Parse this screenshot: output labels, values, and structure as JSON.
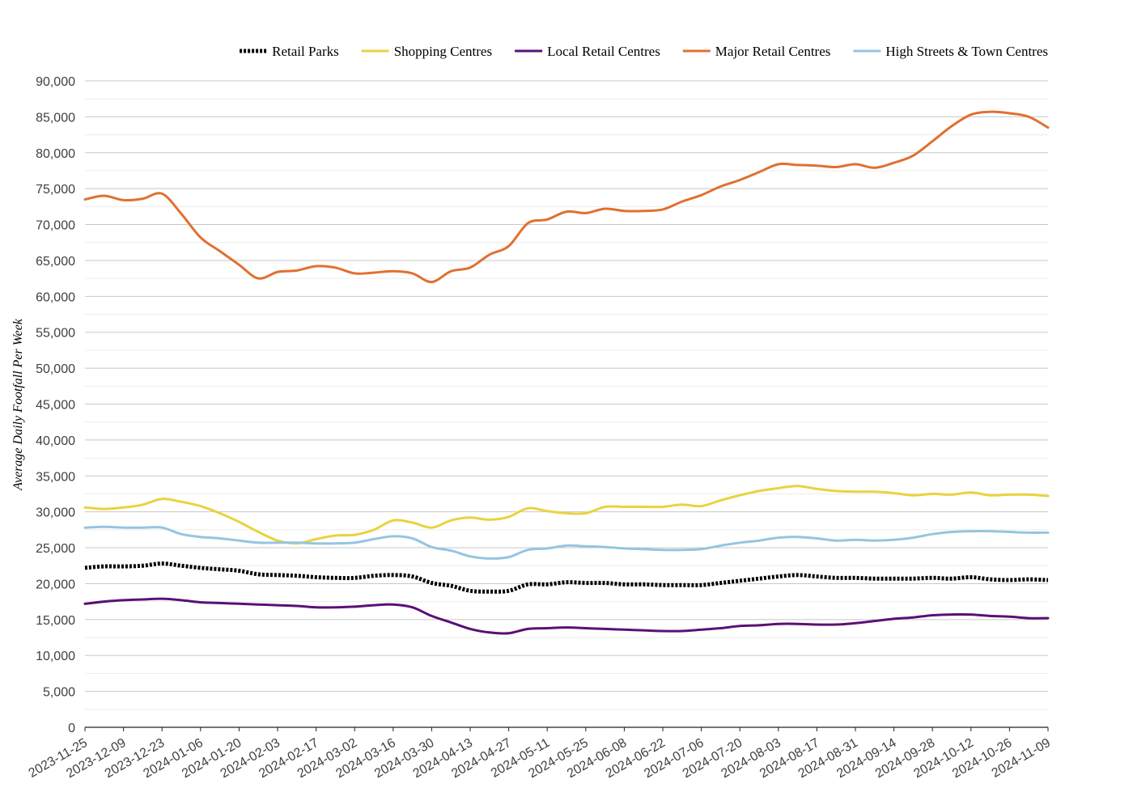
{
  "chart_data": {
    "type": "line",
    "title": "",
    "xlabel": "",
    "ylabel": "Average Daily Footfall Per Week",
    "ylim": [
      0,
      90000
    ],
    "y_ticks": [
      0,
      5000,
      10000,
      15000,
      20000,
      25000,
      30000,
      35000,
      40000,
      45000,
      50000,
      55000,
      60000,
      65000,
      70000,
      75000,
      80000,
      85000,
      90000
    ],
    "y_tick_labels": [
      "0",
      "5,000",
      "10,000",
      "15,000",
      "20,000",
      "25,000",
      "30,000",
      "35,000",
      "40,000",
      "45,000",
      "50,000",
      "55,000",
      "60,000",
      "65,000",
      "70,000",
      "75,000",
      "80,000",
      "85,000",
      "90,000"
    ],
    "x_tick_labels": [
      "2023-11-25",
      "2023-12-09",
      "2023-12-23",
      "2024-01-06",
      "2024-01-20",
      "2024-02-03",
      "2024-02-17",
      "2024-03-02",
      "2024-03-16",
      "2024-03-30",
      "2024-04-13",
      "2024-04-27",
      "2024-05-11",
      "2024-05-25",
      "2024-06-08",
      "2024-06-22",
      "2024-07-06",
      "2024-07-20",
      "2024-08-03",
      "2024-08-17",
      "2024-08-31",
      "2024-09-14",
      "2024-09-28",
      "2024-10-12",
      "2024-10-26",
      "2024-11-09"
    ],
    "x": [
      "2023-11-25",
      "2023-12-02",
      "2023-12-09",
      "2023-12-16",
      "2023-12-23",
      "2023-12-30",
      "2024-01-06",
      "2024-01-13",
      "2024-01-20",
      "2024-01-27",
      "2024-02-03",
      "2024-02-10",
      "2024-02-17",
      "2024-02-24",
      "2024-03-02",
      "2024-03-09",
      "2024-03-16",
      "2024-03-23",
      "2024-03-30",
      "2024-04-06",
      "2024-04-13",
      "2024-04-20",
      "2024-04-27",
      "2024-05-04",
      "2024-05-11",
      "2024-05-18",
      "2024-05-25",
      "2024-06-01",
      "2024-06-08",
      "2024-06-15",
      "2024-06-22",
      "2024-06-29",
      "2024-07-06",
      "2024-07-13",
      "2024-07-20",
      "2024-07-27",
      "2024-08-03",
      "2024-08-10",
      "2024-08-17",
      "2024-08-24",
      "2024-08-31",
      "2024-09-07",
      "2024-09-14",
      "2024-09-21",
      "2024-09-28",
      "2024-10-05",
      "2024-10-12",
      "2024-10-19",
      "2024-10-26",
      "2024-11-02",
      "2024-11-09"
    ],
    "grid": true,
    "legend_position": "top",
    "series": [
      {
        "name": "Retail Parks",
        "color": "#000000",
        "style": "dotted",
        "values": [
          22200,
          22400,
          22400,
          22500,
          22800,
          22500,
          22200,
          22000,
          21800,
          21300,
          21200,
          21100,
          20900,
          20800,
          20800,
          21100,
          21200,
          21000,
          20100,
          19700,
          19000,
          18900,
          19000,
          19900,
          19900,
          20200,
          20100,
          20100,
          19900,
          19900,
          19800,
          19800,
          19800,
          20100,
          20400,
          20700,
          21000,
          21200,
          21000,
          20800,
          20800,
          20700,
          20700,
          20700,
          20800,
          20700,
          20900,
          20600,
          20500,
          20600,
          20500
        ]
      },
      {
        "name": "Shopping Centres",
        "color": "#e8d33f",
        "style": "solid",
        "values": [
          30600,
          30400,
          30600,
          31000,
          31800,
          31400,
          30800,
          29800,
          28600,
          27200,
          26000,
          25600,
          26200,
          26700,
          26800,
          27500,
          28800,
          28500,
          27800,
          28800,
          29200,
          28900,
          29300,
          30500,
          30100,
          29800,
          29800,
          30700,
          30700,
          30700,
          30700,
          31000,
          30800,
          31600,
          32300,
          32900,
          33300,
          33600,
          33200,
          32900,
          32800,
          32800,
          32600,
          32300,
          32500,
          32400,
          32700,
          32300,
          32400,
          32400,
          32200
        ]
      },
      {
        "name": "Local Retail Centres",
        "color": "#5c0f75",
        "style": "solid",
        "values": [
          17200,
          17500,
          17700,
          17800,
          17900,
          17700,
          17400,
          17300,
          17200,
          17100,
          17000,
          16900,
          16700,
          16700,
          16800,
          17000,
          17100,
          16700,
          15500,
          14600,
          13700,
          13200,
          13100,
          13700,
          13800,
          13900,
          13800,
          13700,
          13600,
          13500,
          13400,
          13400,
          13600,
          13800,
          14100,
          14200,
          14400,
          14400,
          14300,
          14300,
          14500,
          14800,
          15100,
          15300,
          15600,
          15700,
          15700,
          15500,
          15400,
          15200,
          15200
        ]
      },
      {
        "name": "Major Retail Centres",
        "color": "#e07030",
        "style": "solid",
        "values": [
          73500,
          74000,
          73400,
          73600,
          74300,
          71500,
          68200,
          66300,
          64400,
          62500,
          63400,
          63600,
          64200,
          64000,
          63200,
          63300,
          63500,
          63200,
          62000,
          63500,
          64000,
          65800,
          67000,
          70200,
          70700,
          71800,
          71600,
          72200,
          71900,
          71900,
          72100,
          73200,
          74100,
          75300,
          76200,
          77300,
          78400,
          78300,
          78200,
          78000,
          78400,
          77900,
          78600,
          79600,
          81600,
          83700,
          85300,
          85700,
          85500,
          85000,
          83500
        ]
      },
      {
        "name": "High Streets & Town Centres",
        "color": "#95c5e0",
        "style": "solid",
        "values": [
          27800,
          27900,
          27800,
          27800,
          27800,
          26900,
          26500,
          26300,
          26000,
          25700,
          25700,
          25700,
          25600,
          25600,
          25700,
          26200,
          26600,
          26300,
          25100,
          24600,
          23800,
          23500,
          23700,
          24700,
          24900,
          25300,
          25200,
          25100,
          24900,
          24800,
          24700,
          24700,
          24800,
          25300,
          25700,
          26000,
          26400,
          26500,
          26300,
          26000,
          26100,
          26000,
          26100,
          26400,
          26900,
          27200,
          27300,
          27300,
          27200,
          27100,
          27100
        ]
      }
    ]
  }
}
